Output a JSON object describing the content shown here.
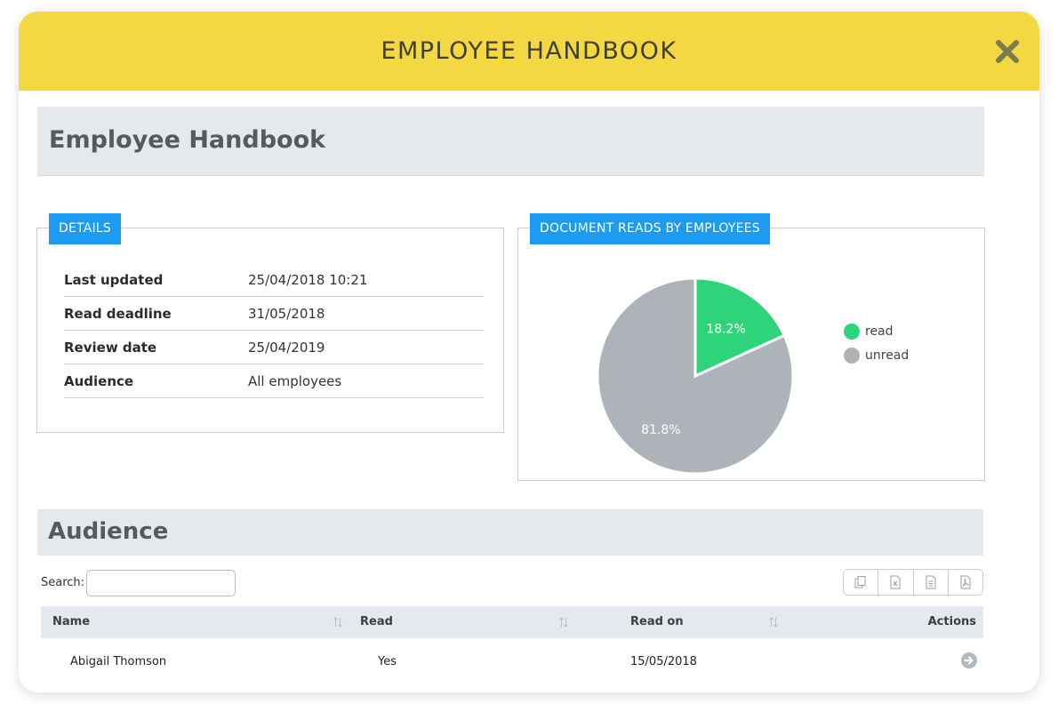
{
  "modal": {
    "title": "EMPLOYEE HANDBOOK",
    "close_icon": "close-x-icon"
  },
  "page": {
    "title": "Employee Handbook"
  },
  "details": {
    "tag": "DETAILS",
    "rows": [
      {
        "key": "Last updated",
        "value": "25/04/2018 10:21"
      },
      {
        "key": "Read deadline",
        "value": "31/05/2018"
      },
      {
        "key": "Review date",
        "value": "25/04/2019"
      },
      {
        "key": "Audience",
        "value": "All employees"
      }
    ]
  },
  "chart": {
    "tag": "DOCUMENT READS BY EMPLOYEES",
    "labels": {
      "read": "18.2%",
      "unread": "81.8%"
    }
  },
  "chart_data": {
    "type": "pie",
    "title": "DOCUMENT READS BY EMPLOYEES",
    "categories": [
      "read",
      "unread"
    ],
    "values": [
      18.2,
      81.8
    ],
    "colors": [
      "#2ed47a",
      "#adb3b9"
    ],
    "legend": "right"
  },
  "audience": {
    "title": "Audience",
    "search_label": "Search:",
    "search_value": "",
    "export_icons": [
      "copy-icon",
      "excel-icon",
      "csv-icon",
      "pdf-icon"
    ],
    "columns": [
      "Name",
      "Read",
      "Read on",
      "Actions"
    ],
    "rows": [
      {
        "name": "Abigail Thomson",
        "read": "Yes",
        "read_on": "15/05/2018",
        "action_icon": "arrow-right-circle-icon"
      }
    ]
  },
  "colors": {
    "header": "#f3d841",
    "accent": "#1d9bf0",
    "read": "#2ed47a",
    "unread": "#adb3b9"
  }
}
